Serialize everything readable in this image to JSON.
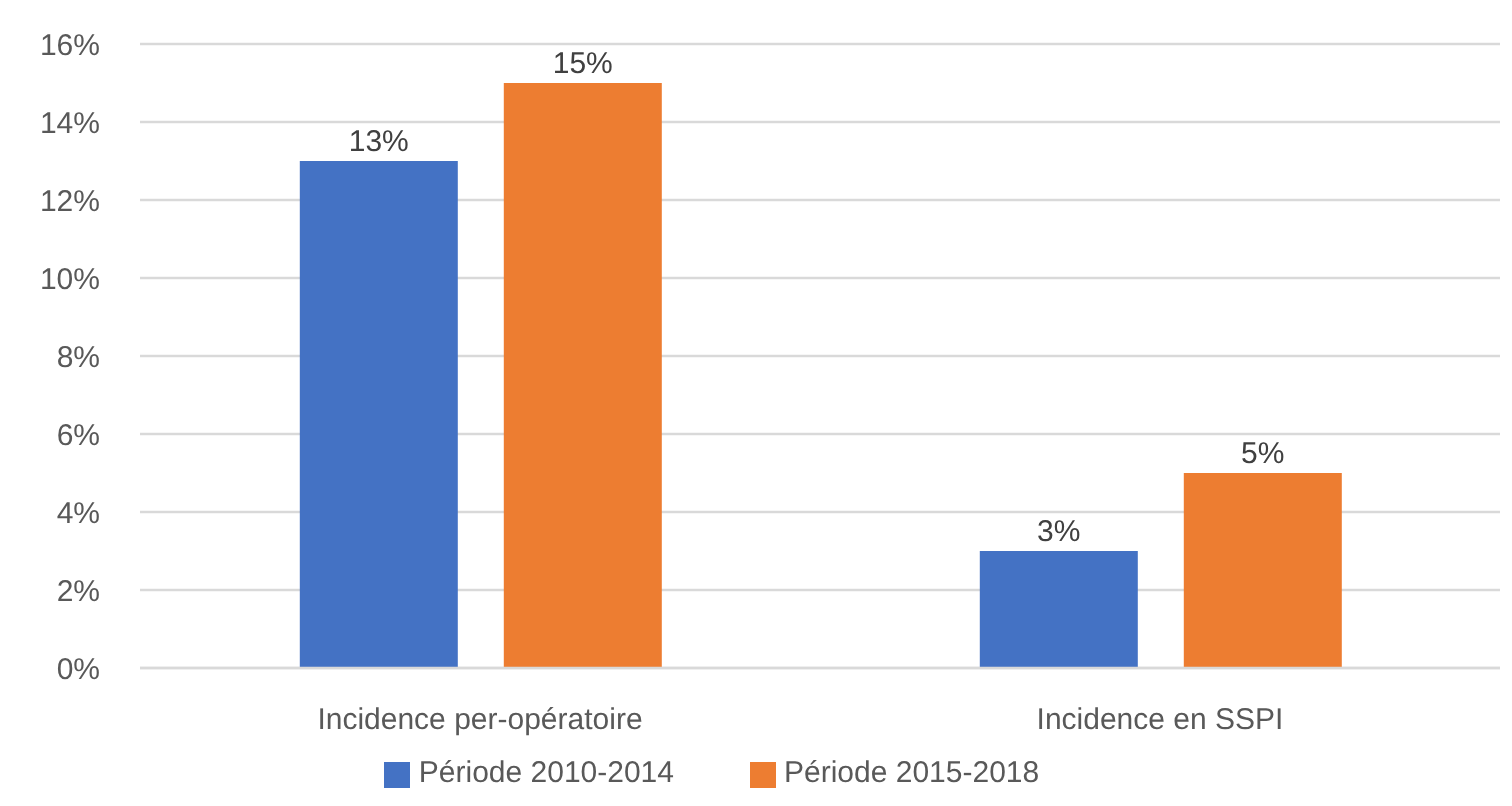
{
  "chart_data": {
    "type": "bar",
    "categories": [
      "Incidence per-opératoire",
      "Incidence en SSPI"
    ],
    "series": [
      {
        "name": "Période 2010-2014",
        "color": "#4472c4",
        "values": [
          13,
          3
        ],
        "value_labels": [
          "13%",
          "3%"
        ]
      },
      {
        "name": "Période 2015-2018",
        "color": "#ed7d31",
        "values": [
          15,
          5
        ],
        "value_labels": [
          "15%",
          "5%"
        ]
      }
    ],
    "ylim": [
      0,
      16
    ],
    "yticks": [
      {
        "value": 0,
        "label": "0%"
      },
      {
        "value": 2,
        "label": "2%"
      },
      {
        "value": 4,
        "label": "4%"
      },
      {
        "value": 6,
        "label": "6%"
      },
      {
        "value": 8,
        "label": "8%"
      },
      {
        "value": 10,
        "label": "10%"
      },
      {
        "value": 12,
        "label": "12%"
      },
      {
        "value": 14,
        "label": "14%"
      },
      {
        "value": 16,
        "label": "16%"
      }
    ],
    "grid": "y",
    "legend": "bottom"
  }
}
